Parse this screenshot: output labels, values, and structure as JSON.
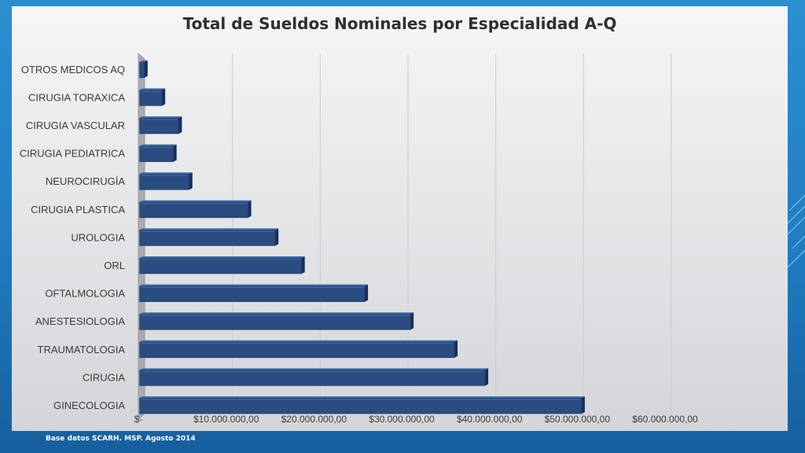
{
  "slide": {
    "source_note": "Base datos SCARH. MSP. Agosto 2014",
    "colors": {
      "background": "#1f7cc0",
      "bar_front": "#2a4c80",
      "bar_top": "#3f6aa6",
      "bar_side": "#16305a"
    }
  },
  "chart_data": {
    "type": "bar",
    "orientation": "horizontal",
    "title": "Total de Sueldos Nominales por Especialidad A-Q",
    "xlabel": "",
    "ylabel": "",
    "categories": [
      "OTROS MEDICOS AQ",
      "CIRUGIA TORAXICA",
      "CIRUGIA VASCULAR",
      "CIRUGIA PEDIATRICA",
      "NEUROCIRUGÍA",
      "CIRUGIA PLASTICA",
      "UROLOGIA",
      "ORL",
      "OFTALMOLOGIA",
      "ANESTESIOLOGIA",
      "TRAUMATOLOGIA",
      "CIRUGIA",
      "GINECOLOGIA"
    ],
    "values": [
      700000,
      2700000,
      4600000,
      4000000,
      5800000,
      12500000,
      15600000,
      18600000,
      25800000,
      31000000,
      36000000,
      39500000,
      50500000
    ],
    "xlim": [
      0,
      60000000
    ],
    "x_ticks": [
      0,
      10000000,
      20000000,
      30000000,
      40000000,
      50000000,
      60000000
    ],
    "x_tick_labels": [
      "$-",
      "$10.000.000,00",
      "$20.000.000,00",
      "$30.000.000,00",
      "$40.000.000,00",
      "$50.000.000,00",
      "$60.000.000,00"
    ],
    "grid": true,
    "legend": "none",
    "style": "3d"
  }
}
